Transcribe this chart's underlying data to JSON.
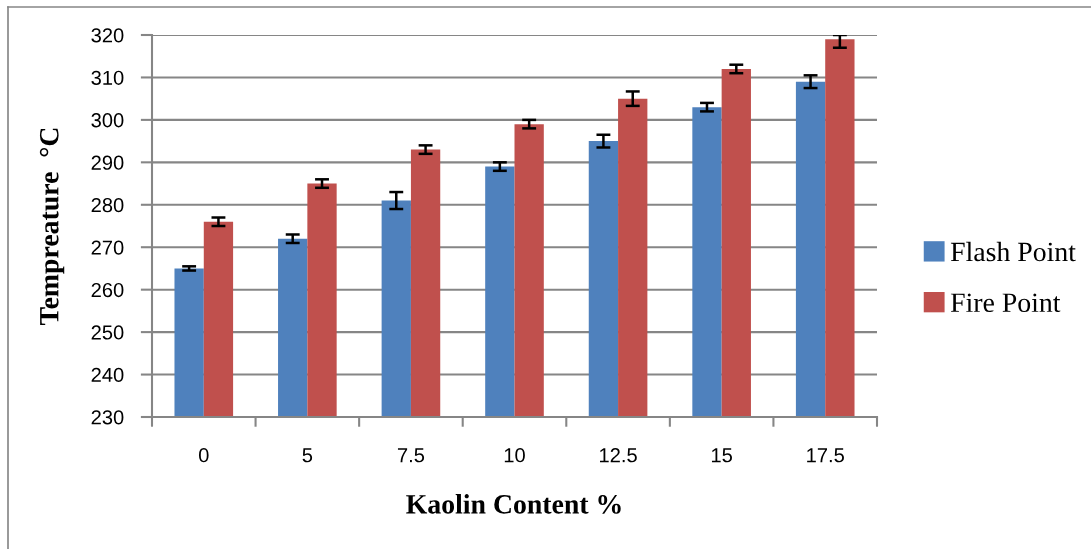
{
  "chart_data": {
    "type": "bar",
    "xlabel": "Kaolin Content %",
    "ylabel": "Tempreature  °C",
    "categories": [
      "0",
      "5",
      "7.5",
      "10",
      "12.5",
      "15",
      "17.5"
    ],
    "series": [
      {
        "name": "Flash Point",
        "color": "#4f81bd",
        "values": [
          265,
          272,
          281,
          289,
          295,
          303,
          309
        ],
        "errors": [
          0.5,
          1,
          2,
          1,
          1.5,
          1,
          1.5
        ]
      },
      {
        "name": "Fire Point",
        "color": "#c0504d",
        "values": [
          276,
          285,
          293,
          299,
          305,
          312,
          319
        ],
        "errors": [
          1,
          1,
          1,
          1,
          1.7,
          1,
          [
            317,
            320
          ]
        ]
      }
    ],
    "ylim": [
      230,
      320
    ],
    "yticks": [
      230,
      240,
      250,
      260,
      270,
      280,
      290,
      300,
      310,
      320
    ],
    "grid": "y",
    "legend": "right"
  }
}
